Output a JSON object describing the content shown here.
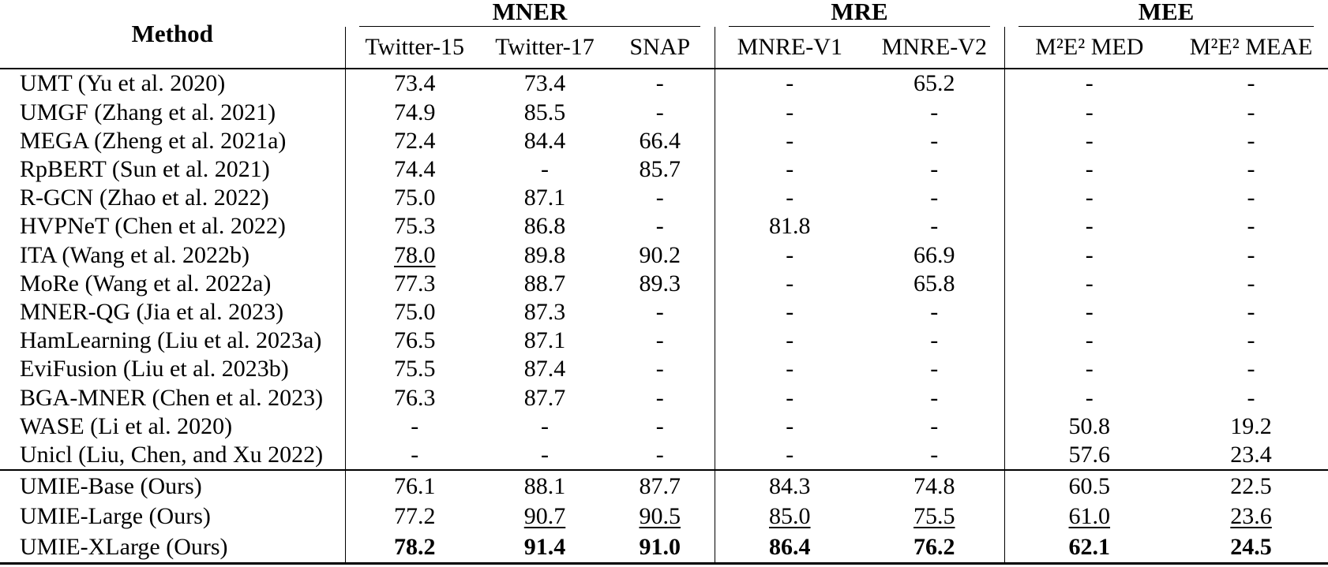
{
  "table": {
    "header": {
      "method_label": "Method",
      "groups": [
        {
          "label": "MNER",
          "columns": [
            "Twitter-15",
            "Twitter-17",
            "SNAP"
          ]
        },
        {
          "label": "MRE",
          "columns": [
            "MNRE-V1",
            "MNRE-V2"
          ]
        },
        {
          "label": "MEE",
          "columns": [
            "M²E² MED",
            "M²E² MEAE"
          ]
        }
      ]
    },
    "baseline_rows": [
      {
        "method": "UMT (Yu et al. 2020)",
        "values": [
          "73.4",
          "73.4",
          "-",
          "-",
          "65.2",
          "-",
          "-"
        ]
      },
      {
        "method": "UMGF (Zhang et al. 2021)",
        "values": [
          "74.9",
          "85.5",
          "-",
          "-",
          "-",
          "-",
          "-"
        ]
      },
      {
        "method": "MEGA (Zheng et al. 2021a)",
        "values": [
          "72.4",
          "84.4",
          "66.4",
          "-",
          "-",
          "-",
          "-"
        ]
      },
      {
        "method": "RpBERT (Sun et al. 2021)",
        "values": [
          "74.4",
          "-",
          "85.7",
          "-",
          "-",
          "-",
          "-"
        ]
      },
      {
        "method": "R-GCN (Zhao et al. 2022)",
        "values": [
          "75.0",
          "87.1",
          "-",
          "-",
          "-",
          "-",
          "-"
        ]
      },
      {
        "method": "HVPNeT (Chen et al. 2022)",
        "values": [
          "75.3",
          "86.8",
          "-",
          "81.8",
          "-",
          "-",
          "-"
        ]
      },
      {
        "method": "ITA (Wang et al. 2022b)",
        "values": [
          "78.0",
          "89.8",
          "90.2",
          "-",
          "66.9",
          "-",
          "-"
        ],
        "styles": [
          "u",
          "",
          "",
          "",
          "",
          "",
          ""
        ]
      },
      {
        "method": "MoRe (Wang et al. 2022a)",
        "values": [
          "77.3",
          "88.7",
          "89.3",
          "-",
          "65.8",
          "-",
          "-"
        ]
      },
      {
        "method": "MNER-QG (Jia et al. 2023)",
        "values": [
          "75.0",
          "87.3",
          "-",
          "-",
          "-",
          "-",
          "-"
        ]
      },
      {
        "method": "HamLearning (Liu et al. 2023a)",
        "values": [
          "76.5",
          "87.1",
          "-",
          "-",
          "-",
          "-",
          "-"
        ]
      },
      {
        "method": "EviFusion (Liu et al. 2023b)",
        "values": [
          "75.5",
          "87.4",
          "-",
          "-",
          "-",
          "-",
          "-"
        ]
      },
      {
        "method": "BGA-MNER (Chen et al. 2023)",
        "values": [
          "76.3",
          "87.7",
          "-",
          "-",
          "-",
          "-",
          "-"
        ]
      },
      {
        "method": "WASE (Li et al. 2020)",
        "values": [
          "-",
          "-",
          "-",
          "-",
          "-",
          "50.8",
          "19.2"
        ]
      },
      {
        "method": "Unicl (Liu, Chen, and Xu 2022)",
        "values": [
          "-",
          "-",
          "-",
          "-",
          "-",
          "57.6",
          "23.4"
        ]
      }
    ],
    "ours_rows": [
      {
        "method": "UMIE-Base (Ours)",
        "values": [
          "76.1",
          "88.1",
          "87.7",
          "84.3",
          "74.8",
          "60.5",
          "22.5"
        ]
      },
      {
        "method": "UMIE-Large (Ours)",
        "values": [
          "77.2",
          "90.7",
          "90.5",
          "85.0",
          "75.5",
          "61.0",
          "23.6"
        ],
        "styles": [
          "",
          "u",
          "u",
          "u",
          "u",
          "u",
          "u"
        ]
      },
      {
        "method": "UMIE-XLarge (Ours)",
        "values": [
          "78.2",
          "91.4",
          "91.0",
          "86.4",
          "76.2",
          "62.1",
          "24.5"
        ],
        "styles": [
          "b",
          "b",
          "b",
          "b",
          "b",
          "b",
          "b"
        ]
      }
    ]
  }
}
